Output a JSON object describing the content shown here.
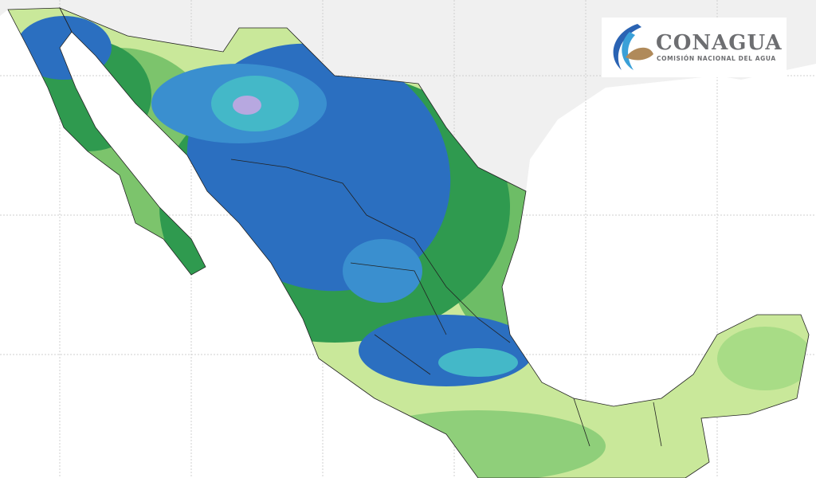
{
  "logo": {
    "name": "CONAGUA",
    "subtitle": "COMISIÓN NACIONAL DEL AGUA"
  }
}
